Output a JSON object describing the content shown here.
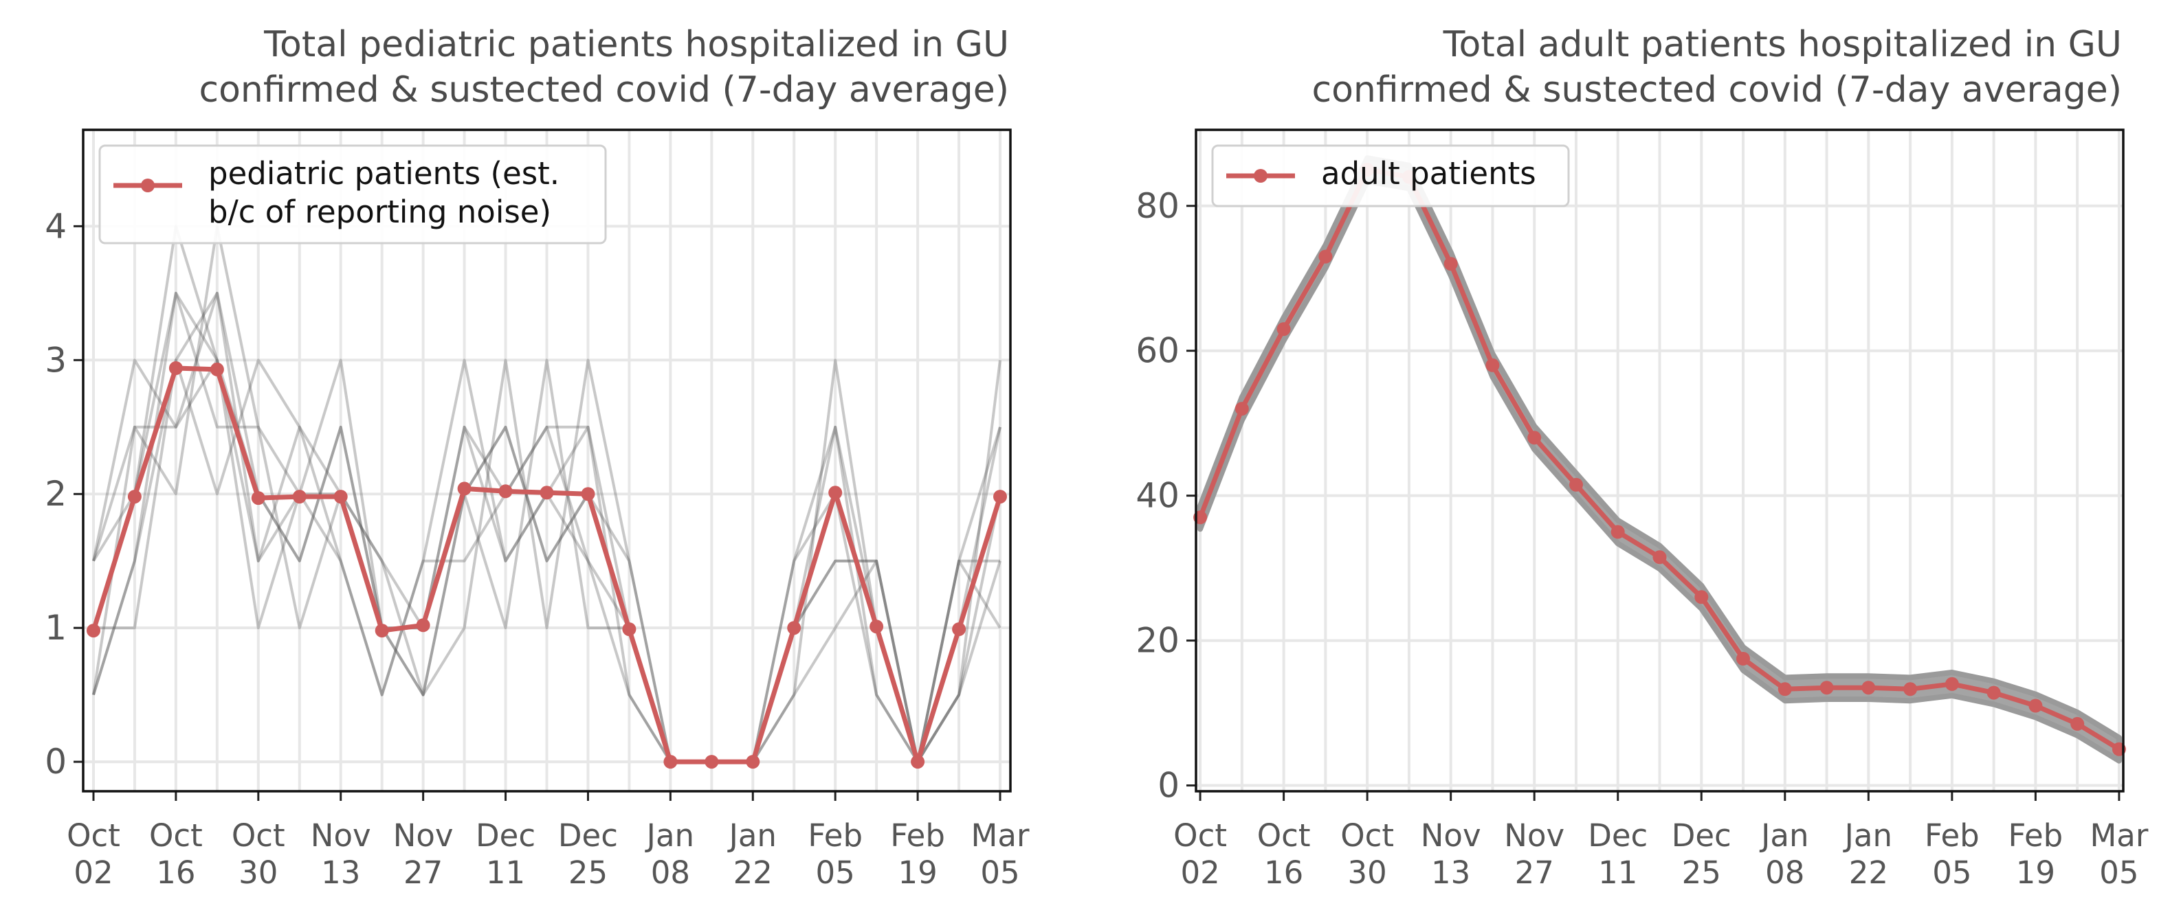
{
  "colors": {
    "accent": "#cd5c5c",
    "noise": "#555555",
    "band": "#9a9a9a",
    "grid": "#e7e7e7"
  },
  "chart_data": [
    {
      "type": "line",
      "title": [
        "Total pediatric patients hospitalized in GU",
        "confirmed & sustected covid (7-day average)"
      ],
      "xlabel": "",
      "ylabel": "",
      "ylim": [
        -0.22,
        4.72
      ],
      "yticks": [
        0,
        1,
        2,
        3,
        4
      ],
      "x_ticks": [
        {
          "line1": "Oct",
          "line2": "02",
          "week": 0
        },
        {
          "line1": "Oct",
          "line2": "16",
          "week": 2
        },
        {
          "line1": "Oct",
          "line2": "30",
          "week": 4
        },
        {
          "line1": "Nov",
          "line2": "13",
          "week": 6
        },
        {
          "line1": "Nov",
          "line2": "27",
          "week": 8
        },
        {
          "line1": "Dec",
          "line2": "11",
          "week": 10
        },
        {
          "line1": "Dec",
          "line2": "25",
          "week": 12
        },
        {
          "line1": "Jan",
          "line2": "08",
          "week": 14
        },
        {
          "line1": "Jan",
          "line2": "22",
          "week": 16
        },
        {
          "line1": "Feb",
          "line2": "05",
          "week": 18
        },
        {
          "line1": "Feb",
          "line2": "19",
          "week": 20
        },
        {
          "line1": "Mar",
          "line2": "05",
          "week": 22
        }
      ],
      "xlim": [
        -0.25,
        22.25
      ],
      "series": [
        {
          "name": "pediatric patients (est.\nb/c of reporting noise)",
          "legend_lines": [
            "pediatric patients (est.",
            "b/c of reporting noise)"
          ],
          "x": [
            0,
            1,
            2,
            3,
            4,
            5,
            6,
            7,
            8,
            9,
            10,
            11,
            12,
            13,
            14,
            15,
            16,
            17,
            18,
            19,
            20,
            21,
            22
          ],
          "values": [
            0.98,
            1.98,
            2.94,
            2.93,
            1.97,
            1.98,
            1.98,
            0.98,
            1.02,
            2.04,
            2.02,
            2.01,
            2.0,
            0.99,
            0.0,
            0.0,
            0.0,
            1.0,
            2.01,
            1.01,
            0.0,
            0.99,
            1.98
          ]
        }
      ],
      "noise_sample_values": [
        [
          0.5,
          1.5,
          3.5,
          3.0,
          1.5,
          2.0,
          2.0,
          1.0,
          0.5,
          2.0,
          2.5,
          1.5,
          2.0,
          1.0,
          0,
          0,
          0,
          1.0,
          2.5,
          1.0,
          0,
          0.5,
          1.5
        ],
        [
          1.5,
          2.5,
          2.5,
          3.5,
          2.0,
          1.5,
          2.5,
          1.0,
          1.0,
          2.5,
          1.5,
          2.0,
          2.5,
          1.0,
          0,
          0,
          0,
          1.0,
          1.5,
          1.5,
          0,
          1.5,
          2.5
        ],
        [
          1.0,
          2.0,
          3.5,
          2.5,
          2.5,
          2.0,
          1.5,
          0.5,
          1.5,
          1.5,
          2.0,
          2.5,
          1.5,
          0.5,
          0,
          0,
          0,
          1.5,
          2.0,
          0.5,
          0,
          1.0,
          2.0
        ],
        [
          0.5,
          1.5,
          3.0,
          3.5,
          1.5,
          2.5,
          2.0,
          1.5,
          0.5,
          2.0,
          2.5,
          1.5,
          2.0,
          1.5,
          0,
          0,
          0,
          0.5,
          3.0,
          1.0,
          0,
          0.5,
          3.0
        ],
        [
          1.5,
          3.0,
          2.5,
          3.0,
          2.0,
          1.5,
          2.5,
          1.0,
          1.0,
          2.5,
          2.0,
          2.5,
          2.5,
          0.5,
          0,
          0,
          0,
          1.0,
          1.5,
          1.5,
          0,
          1.5,
          1.0
        ],
        [
          1.0,
          1.0,
          3.0,
          2.0,
          3.0,
          2.5,
          1.5,
          0.5,
          1.5,
          3.0,
          1.5,
          2.0,
          1.5,
          1.0,
          0,
          0,
          0,
          1.5,
          2.5,
          0.5,
          0,
          1.0,
          2.5
        ],
        [
          1.5,
          2.0,
          4.0,
          3.0,
          1.0,
          2.0,
          3.0,
          1.0,
          0.5,
          1.0,
          3.0,
          1.0,
          3.0,
          1.5,
          0,
          0,
          0,
          0.5,
          1.0,
          1.5,
          0,
          1.5,
          1.5
        ],
        [
          0.5,
          2.5,
          2.0,
          4.0,
          2.5,
          1.0,
          2.0,
          1.5,
          1.0,
          2.0,
          1.0,
          3.0,
          1.0,
          1.0,
          0,
          0,
          0,
          1.0,
          2.0,
          1.0,
          0,
          0.5,
          2.0
        ]
      ]
    },
    {
      "type": "line",
      "title": [
        "Total adult patients hospitalized in GU",
        "confirmed & sustected covid (7-day average)"
      ],
      "xlabel": "",
      "ylabel": "",
      "ylim": [
        -0.8,
        90.5
      ],
      "yticks": [
        0,
        20,
        40,
        60,
        80
      ],
      "x_ticks": [
        {
          "line1": "Oct",
          "line2": "02",
          "week": 0
        },
        {
          "line1": "Oct",
          "line2": "16",
          "week": 2
        },
        {
          "line1": "Oct",
          "line2": "30",
          "week": 4
        },
        {
          "line1": "Nov",
          "line2": "13",
          "week": 6
        },
        {
          "line1": "Nov",
          "line2": "27",
          "week": 8
        },
        {
          "line1": "Dec",
          "line2": "11",
          "week": 10
        },
        {
          "line1": "Dec",
          "line2": "25",
          "week": 12
        },
        {
          "line1": "Jan",
          "line2": "08",
          "week": 14
        },
        {
          "line1": "Jan",
          "line2": "22",
          "week": 16
        },
        {
          "line1": "Feb",
          "line2": "05",
          "week": 18
        },
        {
          "line1": "Feb",
          "line2": "19",
          "week": 20
        },
        {
          "line1": "Mar",
          "line2": "05",
          "week": 22
        }
      ],
      "xlim": [
        -0.1,
        22.1
      ],
      "series": [
        {
          "name": "adult patients",
          "legend_lines": [
            "adult patients"
          ],
          "x": [
            0,
            1,
            2,
            3,
            4,
            5,
            6,
            7,
            8,
            9,
            10,
            11,
            12,
            13,
            14,
            15,
            16,
            17,
            18,
            19,
            20,
            21,
            22
          ],
          "values": [
            37,
            52,
            63,
            73,
            85,
            84,
            72,
            58,
            48,
            41.5,
            35,
            31.5,
            26,
            17.5,
            13.3,
            13.5,
            13.5,
            13.3,
            14,
            12.8,
            11,
            8.5,
            5
          ]
        }
      ],
      "band_halfwidth": 1.6
    }
  ]
}
